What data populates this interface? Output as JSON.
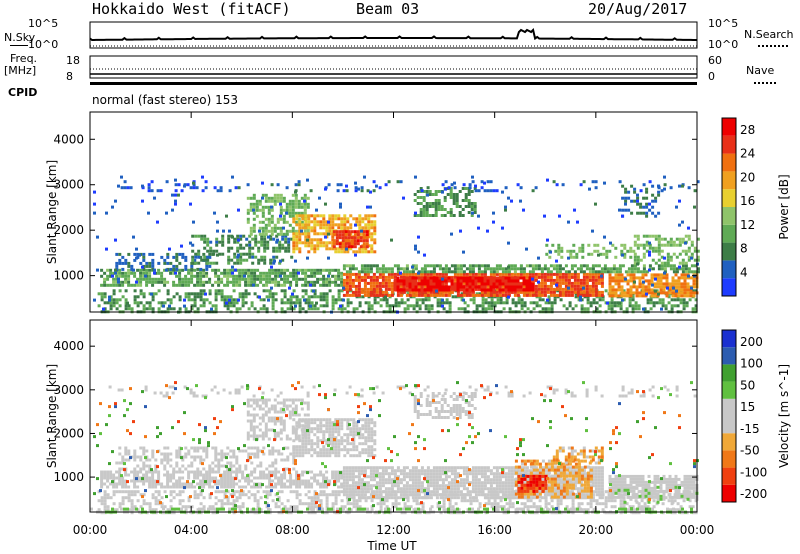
{
  "header": {
    "radar": "Hokkaido West (fitACF)",
    "beam": "Beam 03",
    "date": "20/Aug/2017"
  },
  "panels": {
    "nsky_label": "N.Sky",
    "nsky_ticks": [
      "10^5",
      "10^0"
    ],
    "nsearch_label": "N.Search",
    "nsearch_ticks": [
      "10^5",
      "10^0"
    ],
    "freq_label": "Freq.",
    "freq_unit": "[MHz]",
    "freq_ticks": [
      "18",
      "8"
    ],
    "nave_label": "Nave",
    "nave_ticks": [
      "60",
      "0"
    ],
    "cpid_label": "CPID",
    "cpid_text": "normal (fast stereo) 153"
  },
  "colors": {
    "power": [
      "#1e3cff",
      "#2060c0",
      "#3d7d47",
      "#5faa55",
      "#8fc46a",
      "#e8d030",
      "#f0a020",
      "#f07010",
      "#e83018",
      "#ee0000"
    ],
    "velocity": [
      "#ee0000",
      "#f04010",
      "#f07818",
      "#f0a838",
      "#c8c8c8",
      "#c8c8c8",
      "#60c040",
      "#40a030",
      "#2c5cb0",
      "#1a30d0"
    ]
  },
  "chart_data": [
    {
      "type": "heatmap",
      "title": "",
      "xlabel": "Time UT",
      "ylabel": "Slant Range [km]",
      "x_ticks": [
        "00:00",
        "04:00",
        "08:00",
        "12:00",
        "16:00",
        "20:00",
        "00:00"
      ],
      "y_ticks": [
        "1000",
        "2000",
        "3000",
        "4000"
      ],
      "ylim": [
        200,
        4600
      ],
      "xlim_hours": [
        0,
        24
      ],
      "colorbar": {
        "label": "Power [dB]",
        "ticks": [
          "4",
          "8",
          "12",
          "16",
          "20",
          "24",
          "28"
        ],
        "range": [
          0,
          30
        ]
      },
      "regions": [
        {
          "t0": 0.3,
          "t1": 24.0,
          "r0": 200,
          "r1": 700,
          "v": 9,
          "d": 0.45
        },
        {
          "t0": 0.4,
          "t1": 10.0,
          "r0": 780,
          "r1": 1150,
          "v": 10,
          "d": 0.75
        },
        {
          "t0": 1.0,
          "t1": 5.0,
          "r0": 1150,
          "r1": 1500,
          "v": 6,
          "d": 0.45
        },
        {
          "t0": 4.0,
          "t1": 8.0,
          "r0": 1300,
          "r1": 1900,
          "v": 8,
          "d": 0.45
        },
        {
          "t0": 6.2,
          "t1": 8.6,
          "r0": 1900,
          "r1": 2800,
          "v": 12,
          "d": 0.55
        },
        {
          "t0": 8.0,
          "t1": 11.3,
          "r0": 1500,
          "r1": 2350,
          "v": 19,
          "d": 0.7
        },
        {
          "t0": 9.6,
          "t1": 11.0,
          "r0": 1650,
          "r1": 2000,
          "v": 25,
          "d": 0.85
        },
        {
          "t0": 10.0,
          "t1": 20.3,
          "r0": 560,
          "r1": 1060,
          "v": 24,
          "d": 0.9
        },
        {
          "t0": 12.0,
          "t1": 17.5,
          "r0": 680,
          "r1": 980,
          "v": 28,
          "d": 0.85
        },
        {
          "t0": 10.0,
          "t1": 24.0,
          "r0": 1060,
          "r1": 1250,
          "v": 10,
          "d": 0.7
        },
        {
          "t0": 12.8,
          "t1": 15.2,
          "r0": 2350,
          "r1": 2950,
          "v": 9,
          "d": 0.55
        },
        {
          "t0": 18.0,
          "t1": 21.5,
          "r0": 1380,
          "r1": 1700,
          "v": 12,
          "d": 0.45
        },
        {
          "t0": 20.5,
          "t1": 24.0,
          "r0": 560,
          "r1": 1050,
          "v": 21,
          "d": 0.8
        },
        {
          "t0": 21.5,
          "t1": 24.0,
          "r0": 1250,
          "r1": 1900,
          "v": 12,
          "d": 0.45
        },
        {
          "t0": 21.0,
          "t1": 22.5,
          "r0": 2300,
          "r1": 3000,
          "v": 6,
          "d": 0.3
        },
        {
          "t0": 0.5,
          "t1": 24.0,
          "r0": 2850,
          "r1": 3100,
          "v": 4,
          "d": 0.14
        },
        {
          "t0": 0.0,
          "t1": 24.0,
          "r0": 200,
          "r1": 3200,
          "v": 4,
          "d": 0.025
        }
      ]
    },
    {
      "type": "heatmap",
      "title": "",
      "xlabel": "Time UT",
      "ylabel": "Slant Range [km]",
      "x_ticks": [
        "00:00",
        "04:00",
        "08:00",
        "12:00",
        "16:00",
        "20:00",
        "00:00"
      ],
      "y_ticks": [
        "1000",
        "2000",
        "3000",
        "4000"
      ],
      "ylim": [
        200,
        4600
      ],
      "xlim_hours": [
        0,
        24
      ],
      "colorbar": {
        "label": "Velocity [m s^-1]",
        "ticks": [
          "200",
          "100",
          "50",
          "15",
          "-15",
          "-50",
          "-100",
          "-200"
        ],
        "range": [
          -250,
          250
        ]
      },
      "regions": [
        {
          "t0": 0.3,
          "t1": 24.0,
          "r0": 200,
          "r1": 700,
          "v": 0,
          "d": 0.45
        },
        {
          "t0": 0.0,
          "t1": 24.0,
          "r0": 200,
          "r1": 300,
          "v": 60,
          "d": 0.5
        },
        {
          "t0": 0.4,
          "t1": 10.0,
          "r0": 780,
          "r1": 1150,
          "v": 0,
          "d": 0.7
        },
        {
          "t0": 1.0,
          "t1": 8.0,
          "r0": 1150,
          "r1": 1700,
          "v": 0,
          "d": 0.45
        },
        {
          "t0": 6.2,
          "t1": 8.6,
          "r0": 1900,
          "r1": 2800,
          "v": 0,
          "d": 0.55
        },
        {
          "t0": 8.0,
          "t1": 11.3,
          "r0": 1500,
          "r1": 2350,
          "v": 0,
          "d": 0.7
        },
        {
          "t0": 10.0,
          "t1": 20.3,
          "r0": 560,
          "r1": 1250,
          "v": 0,
          "d": 0.85
        },
        {
          "t0": 16.8,
          "t1": 19.8,
          "r0": 560,
          "r1": 1400,
          "v": -80,
          "d": 0.65
        },
        {
          "t0": 16.9,
          "t1": 18.0,
          "r0": 650,
          "r1": 1050,
          "v": -180,
          "d": 0.8
        },
        {
          "t0": 18.3,
          "t1": 20.3,
          "r0": 1300,
          "r1": 1700,
          "v": -70,
          "d": 0.55
        },
        {
          "t0": 20.5,
          "t1": 24.0,
          "r0": 560,
          "r1": 1050,
          "v": 0,
          "d": 0.8
        },
        {
          "t0": 20.5,
          "t1": 24.0,
          "r0": 400,
          "r1": 800,
          "v": 40,
          "d": 0.25
        },
        {
          "t0": 12.8,
          "t1": 15.2,
          "r0": 2350,
          "r1": 2950,
          "v": 0,
          "d": 0.55
        },
        {
          "t0": 0.5,
          "t1": 24.0,
          "r0": 2850,
          "r1": 3100,
          "v": 0,
          "d": 0.14
        },
        {
          "t0": 0.0,
          "t1": 24.0,
          "r0": 200,
          "r1": 3200,
          "v": 120,
          "d": 0.02
        },
        {
          "t0": 0.0,
          "t1": 24.0,
          "r0": 200,
          "r1": 3200,
          "v": -150,
          "d": 0.015
        }
      ]
    }
  ]
}
